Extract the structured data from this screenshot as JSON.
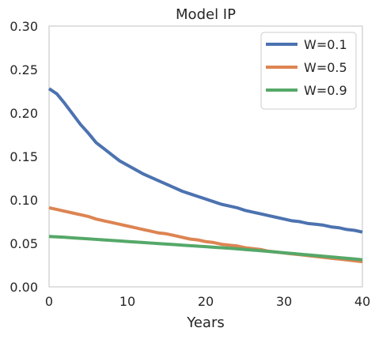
{
  "chart_data": {
    "type": "line",
    "title": "Model IP",
    "xlabel": "Years",
    "ylabel": "",
    "xlim": [
      0,
      40
    ],
    "ylim": [
      0,
      0.3
    ],
    "xticks": [
      0,
      10,
      20,
      30,
      40
    ],
    "xtick_labels": [
      "0",
      "10",
      "20",
      "30",
      "40"
    ],
    "yticks": [
      0.0,
      0.05,
      0.1,
      0.15,
      0.2,
      0.25,
      0.3
    ],
    "ytick_labels": [
      "0.00",
      "0.05",
      "0.10",
      "0.15",
      "0.20",
      "0.25",
      "0.30"
    ],
    "grid": false,
    "legend_position": "top-right",
    "x": [
      0,
      1,
      2,
      3,
      4,
      5,
      6,
      7,
      8,
      9,
      10,
      11,
      12,
      13,
      14,
      15,
      16,
      17,
      18,
      19,
      20,
      21,
      22,
      23,
      24,
      25,
      26,
      27,
      28,
      29,
      30,
      31,
      32,
      33,
      34,
      35,
      36,
      37,
      38,
      39,
      40
    ],
    "series": [
      {
        "name": "W=0.1",
        "color": "#4c72b0",
        "values": [
          0.228,
          0.222,
          0.211,
          0.199,
          0.187,
          0.177,
          0.166,
          0.159,
          0.152,
          0.145,
          0.14,
          0.135,
          0.13,
          0.126,
          0.122,
          0.118,
          0.114,
          0.11,
          0.107,
          0.104,
          0.101,
          0.098,
          0.095,
          0.093,
          0.091,
          0.088,
          0.086,
          0.084,
          0.082,
          0.08,
          0.078,
          0.076,
          0.075,
          0.073,
          0.072,
          0.071,
          0.069,
          0.068,
          0.066,
          0.065,
          0.063
        ]
      },
      {
        "name": "W=0.5",
        "color": "#dd8452",
        "values": [
          0.091,
          0.089,
          0.087,
          0.085,
          0.083,
          0.081,
          0.078,
          0.076,
          0.074,
          0.072,
          0.07,
          0.068,
          0.066,
          0.064,
          0.062,
          0.061,
          0.059,
          0.057,
          0.055,
          0.054,
          0.052,
          0.051,
          0.049,
          0.048,
          0.047,
          0.045,
          0.044,
          0.043,
          0.041,
          0.04,
          0.039,
          0.038,
          0.037,
          0.036,
          0.035,
          0.034,
          0.033,
          0.032,
          0.031,
          0.03,
          0.029
        ]
      },
      {
        "name": "W=0.9",
        "color": "#55a868",
        "values": [
          0.058,
          0.0575,
          0.057,
          0.0564,
          0.0558,
          0.0552,
          0.0546,
          0.054,
          0.0534,
          0.0528,
          0.0522,
          0.0516,
          0.051,
          0.0504,
          0.0498,
          0.0492,
          0.0486,
          0.048,
          0.0474,
          0.0468,
          0.0462,
          0.0456,
          0.045,
          0.0444,
          0.0437,
          0.043,
          0.0423,
          0.0416,
          0.0408,
          0.04,
          0.0392,
          0.0384,
          0.0376,
          0.0368,
          0.036,
          0.0352,
          0.0344,
          0.0336,
          0.0328,
          0.032,
          0.0312
        ]
      }
    ]
  }
}
